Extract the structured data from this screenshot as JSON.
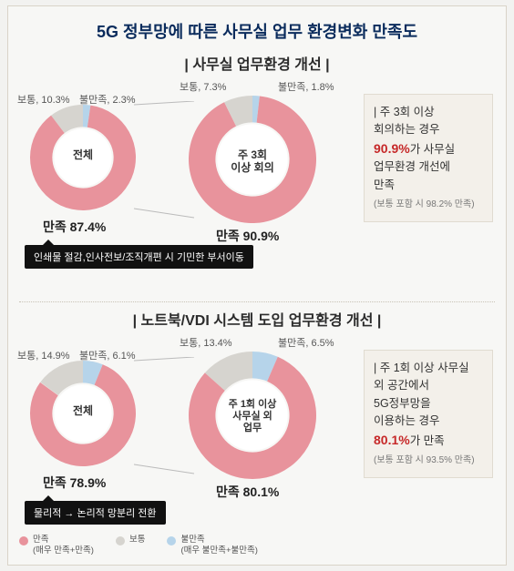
{
  "title": "5G 정부망에 따른 사무실 업무 환경변화 만족도",
  "colors": {
    "satisfied": "#e8939c",
    "neutral": "#d6d4cf",
    "dissatisfied": "#b6d4ea",
    "inner_ring": "#efefef",
    "bg": "#f7f7f5",
    "title": "#0a2b5c",
    "highlight": "#c62828",
    "bar": "#111111"
  },
  "sections": [
    {
      "title": "| 사무실 업무환경 개선 |",
      "donuts": [
        {
          "center_label": "전체",
          "satisfied": 87.4,
          "neutral": 10.3,
          "dissatisfied": 2.3,
          "labels": {
            "satisfied": "만족  87.4%",
            "neutral": "보통, 10.3%",
            "dissatisfied": "불만족, 2.3%"
          }
        },
        {
          "center_label": "주 3회\n이상 회의",
          "satisfied": 90.9,
          "neutral": 7.3,
          "dissatisfied": 1.8,
          "labels": {
            "satisfied": "만족 90.9%",
            "neutral": "보통, 7.3%",
            "dissatisfied": "불만족, 1.8%"
          }
        }
      ],
      "black_bar": "인쇄물 절감,인사전보/조직개편 시 기민한 부서이동",
      "side": {
        "l1": "| 주 3회 이상",
        "l2": "회의하는 경우",
        "hl": "90.9%",
        "l3": "가 사무실",
        "l4": "업무환경 개선에",
        "l5": "만족",
        "note": "(보통 포함 시 98.2% 만족)"
      }
    },
    {
      "title": "| 노트북/VDI 시스템 도입 업무환경 개선 |",
      "donuts": [
        {
          "center_label": "전체",
          "satisfied": 78.9,
          "neutral": 14.9,
          "dissatisfied": 6.1,
          "labels": {
            "satisfied": "만족  78.9%",
            "neutral": "보통, 14.9%",
            "dissatisfied": "불만족, 6.1%"
          }
        },
        {
          "center_label": "주 1회 이상\n사무실 외\n업무",
          "satisfied": 80.1,
          "neutral": 13.4,
          "dissatisfied": 6.5,
          "labels": {
            "satisfied": "만족 80.1%",
            "neutral": "보통, 13.4%",
            "dissatisfied": "불만족, 6.5%"
          }
        }
      ],
      "black_bar": "물리적 → 논리적 망분리 전환",
      "side": {
        "l1": "| 주 1회 이상 사무실",
        "l2": "외 공간에서",
        "l3": "5G정부망을",
        "l4": "이용하는 경우",
        "hl": "80.1%",
        "l5": "가 만족",
        "note": "(보통 포함 시 93.5% 만족)"
      }
    }
  ],
  "legend": {
    "satisfied": {
      "title": "만족",
      "sub": "(매우 만족+만족)"
    },
    "neutral": {
      "title": "보통",
      "sub": ""
    },
    "dissatisfied": {
      "title": "불만족",
      "sub": "(매우 불만족+불만족)"
    }
  }
}
